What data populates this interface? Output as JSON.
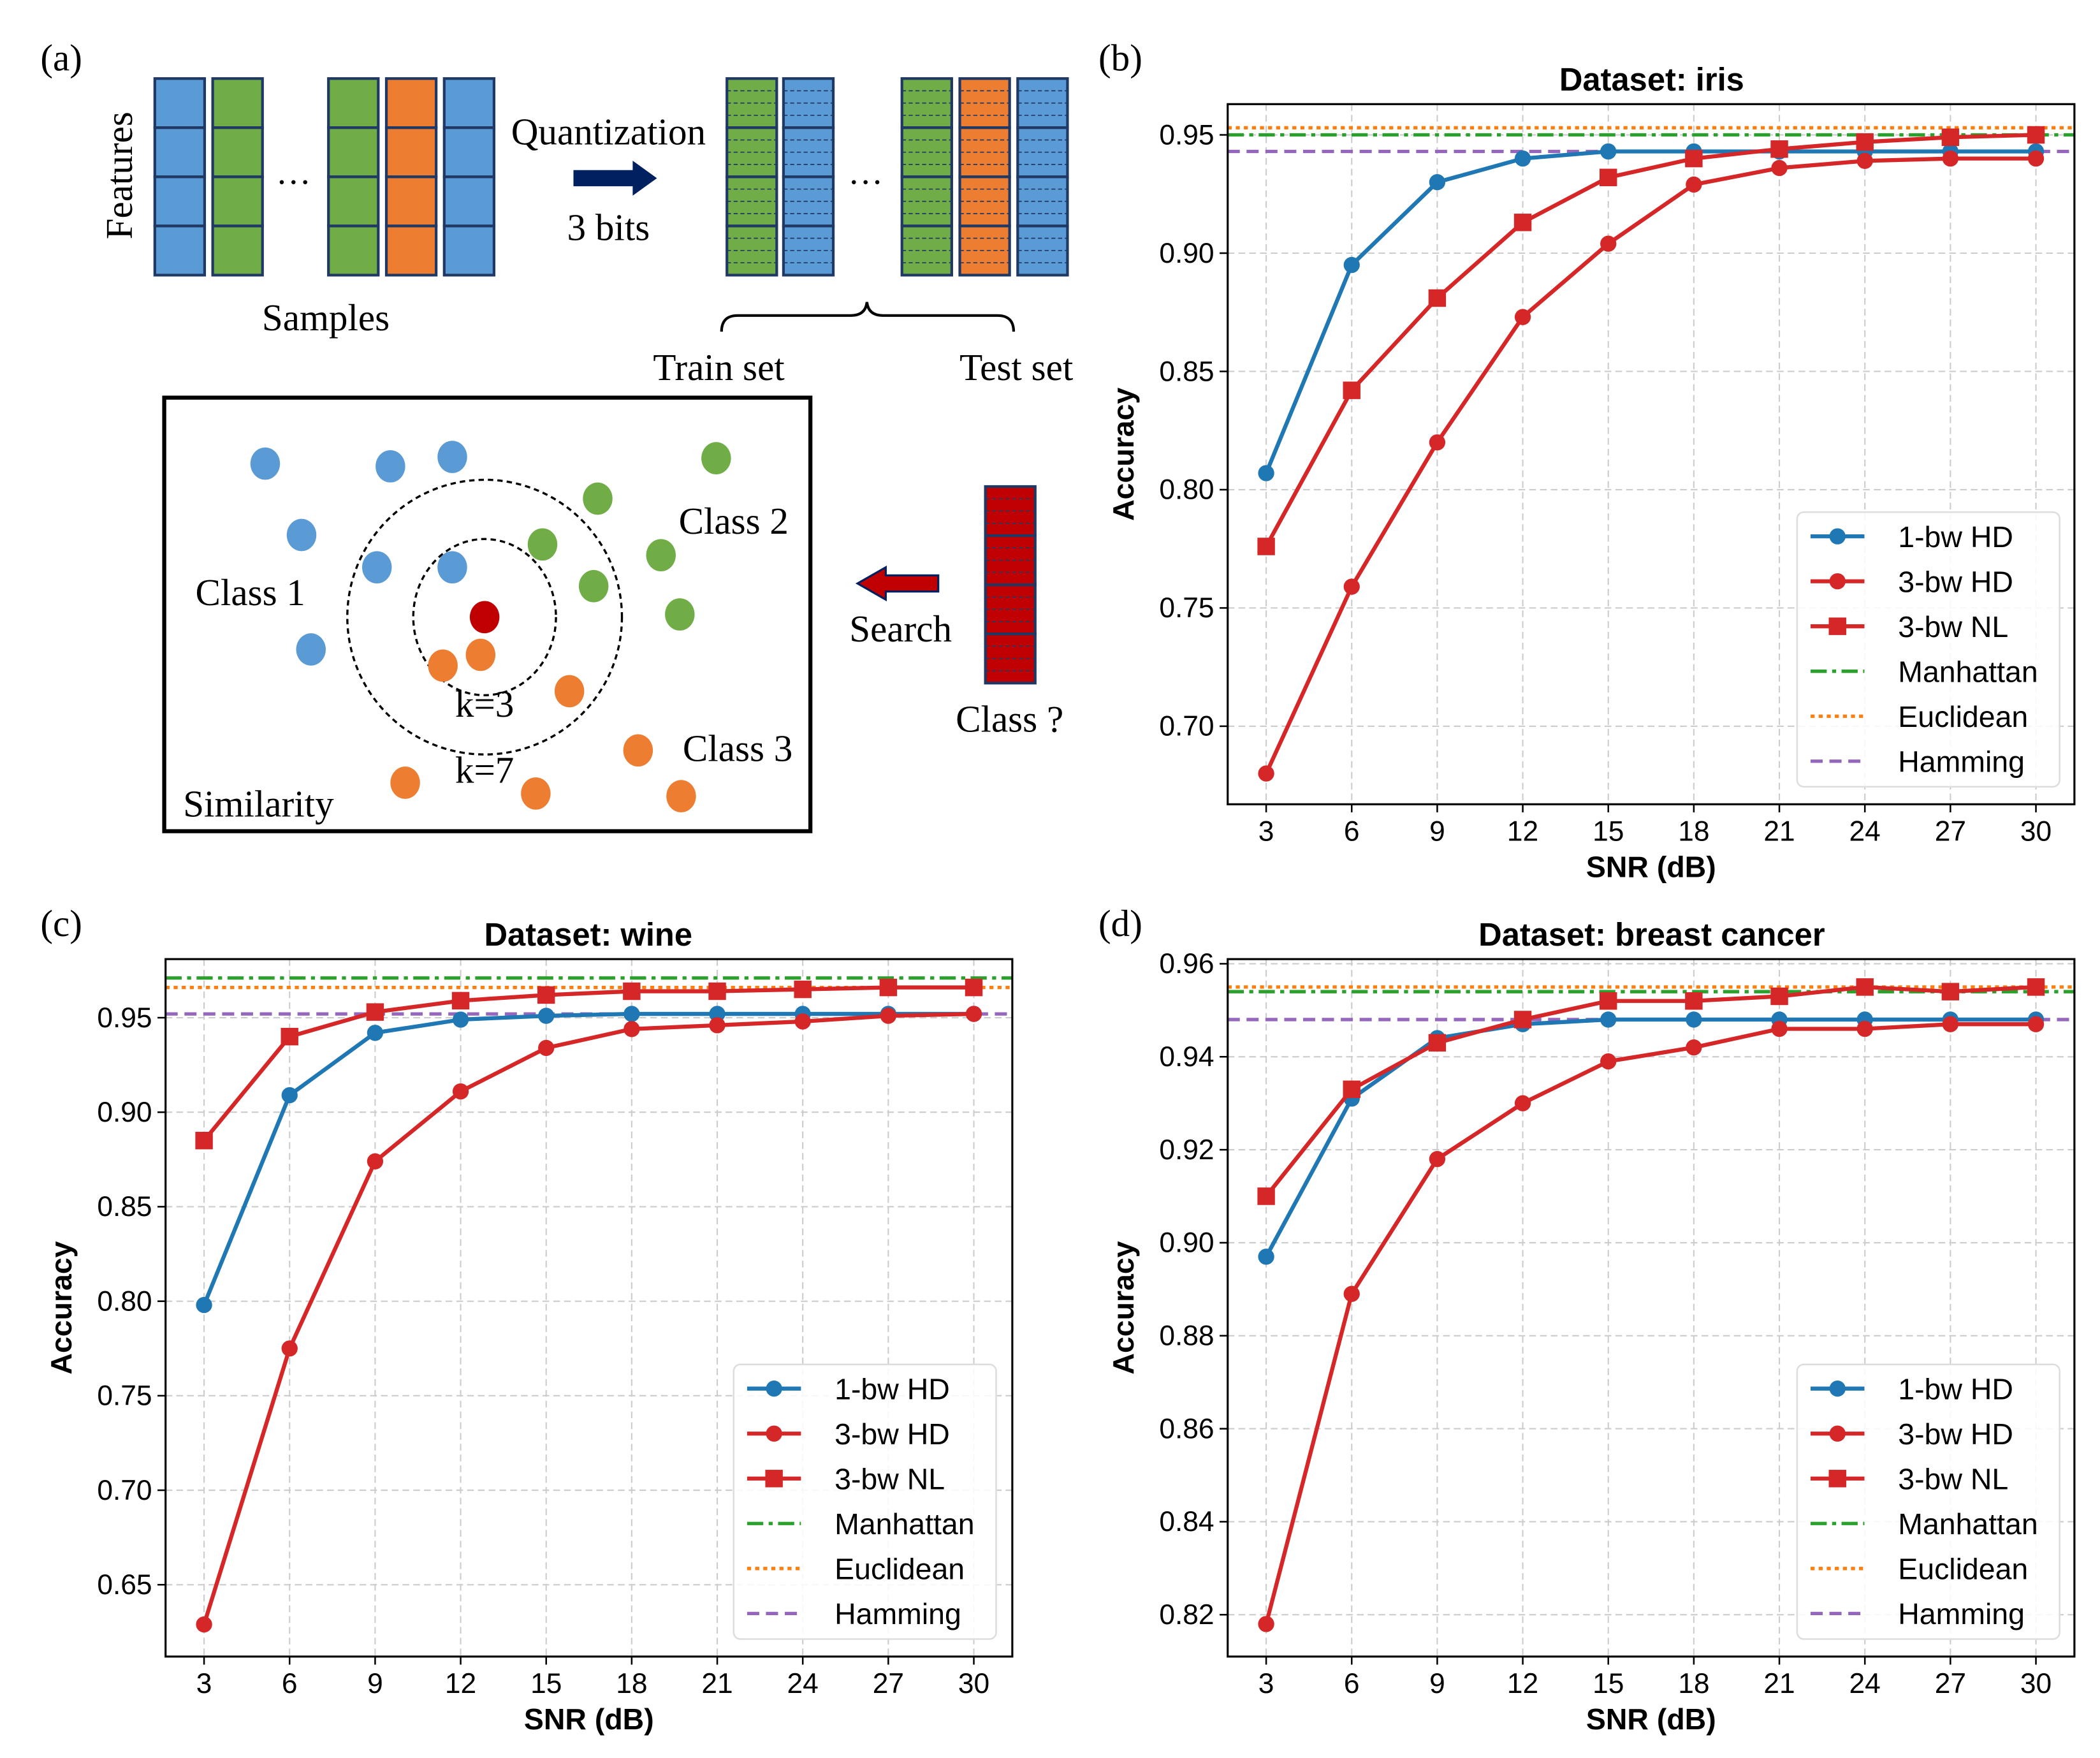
{
  "panel_labels": {
    "a": "(a)",
    "b": "(b)",
    "c": "(c)",
    "d": "(d)"
  },
  "diagram": {
    "features_label": "Features",
    "samples_label": "Samples",
    "ellipsis": "…",
    "quantization_label": "Quantization",
    "bits_label": "3 bits",
    "train_set_label": "Train set",
    "test_set_label": "Test set",
    "class1_label": "Class 1",
    "class2_label": "Class 2",
    "class3_label": "Class 3",
    "k3_label": "k=3",
    "k7_label": "k=7",
    "similarity_label": "Similarity",
    "search_label": "Search",
    "query_label": "Class ?",
    "colors": {
      "class1": "#5b9bd5",
      "class2": "#70ad47",
      "class3": "#ed7d31",
      "query": "#c00000",
      "arrow": "#002060"
    }
  },
  "chart_data": [
    {
      "type": "line",
      "title": "Dataset: iris",
      "xlabel": "SNR (dB)",
      "ylabel": "Accuracy",
      "x": [
        3,
        6,
        9,
        12,
        15,
        18,
        21,
        24,
        27,
        30
      ],
      "xlim": [
        1.65,
        31.35
      ],
      "ylim": [
        0.667,
        0.963
      ],
      "yticks": [
        0.7,
        0.75,
        0.8,
        0.85,
        0.9,
        0.95
      ],
      "ytick_labels": [
        "0.70",
        "0.75",
        "0.80",
        "0.85",
        "0.90",
        "0.95"
      ],
      "grid": true,
      "legend": "lower-right",
      "series": [
        {
          "name": "1-bw HD",
          "color": "#1f77b4",
          "marker": "circle",
          "values": [
            0.807,
            0.895,
            0.93,
            0.94,
            0.943,
            0.943,
            0.943,
            0.943,
            0.943,
            0.943
          ]
        },
        {
          "name": "3-bw HD",
          "color": "#d62728",
          "marker": "circle",
          "values": [
            0.68,
            0.759,
            0.82,
            0.873,
            0.904,
            0.929,
            0.936,
            0.939,
            0.94,
            0.94
          ]
        },
        {
          "name": "3-bw NL",
          "color": "#d62728",
          "marker": "square",
          "values": [
            0.776,
            0.842,
            0.881,
            0.913,
            0.932,
            0.94,
            0.944,
            0.947,
            0.949,
            0.95
          ]
        }
      ],
      "reference_lines": [
        {
          "name": "Manhattan",
          "color": "#2ca02c",
          "style": "dashdot",
          "value": 0.95
        },
        {
          "name": "Euclidean",
          "color": "#ff7f0e",
          "style": "dotted",
          "value": 0.953
        },
        {
          "name": "Hamming",
          "color": "#9467bd",
          "style": "dashed",
          "value": 0.943
        }
      ]
    },
    {
      "type": "line",
      "title": "Dataset: wine",
      "xlabel": "SNR (dB)",
      "ylabel": "Accuracy",
      "x": [
        3,
        6,
        9,
        12,
        15,
        18,
        21,
        24,
        27,
        30
      ],
      "xlim": [
        1.65,
        31.35
      ],
      "ylim": [
        0.612,
        0.981
      ],
      "yticks": [
        0.65,
        0.7,
        0.75,
        0.8,
        0.85,
        0.9,
        0.95
      ],
      "ytick_labels": [
        "0.65",
        "0.70",
        "0.75",
        "0.80",
        "0.85",
        "0.90",
        "0.95"
      ],
      "grid": true,
      "legend": "lower-right",
      "series": [
        {
          "name": "1-bw HD",
          "color": "#1f77b4",
          "marker": "circle",
          "values": [
            0.798,
            0.909,
            0.942,
            0.949,
            0.951,
            0.952,
            0.952,
            0.952,
            0.952,
            0.952
          ]
        },
        {
          "name": "3-bw HD",
          "color": "#d62728",
          "marker": "circle",
          "values": [
            0.629,
            0.775,
            0.874,
            0.911,
            0.934,
            0.944,
            0.946,
            0.948,
            0.951,
            0.952
          ]
        },
        {
          "name": "3-bw NL",
          "color": "#d62728",
          "marker": "square",
          "values": [
            0.885,
            0.94,
            0.953,
            0.959,
            0.962,
            0.964,
            0.964,
            0.965,
            0.966,
            0.966
          ]
        }
      ],
      "reference_lines": [
        {
          "name": "Manhattan",
          "color": "#2ca02c",
          "style": "dashdot",
          "value": 0.971
        },
        {
          "name": "Euclidean",
          "color": "#ff7f0e",
          "style": "dotted",
          "value": 0.966
        },
        {
          "name": "Hamming",
          "color": "#9467bd",
          "style": "dashed",
          "value": 0.952
        }
      ]
    },
    {
      "type": "line",
      "title": "Dataset: breast cancer",
      "xlabel": "SNR (dB)",
      "ylabel": "Accuracy",
      "x": [
        3,
        6,
        9,
        12,
        15,
        18,
        21,
        24,
        27,
        30
      ],
      "xlim": [
        1.65,
        31.35
      ],
      "ylim": [
        0.811,
        0.961
      ],
      "yticks": [
        0.82,
        0.84,
        0.86,
        0.88,
        0.9,
        0.92,
        0.94,
        0.96
      ],
      "ytick_labels": [
        "0.82",
        "0.84",
        "0.86",
        "0.88",
        "0.90",
        "0.92",
        "0.94",
        "0.96"
      ],
      "grid": true,
      "legend": "lower-right",
      "series": [
        {
          "name": "1-bw HD",
          "color": "#1f77b4",
          "marker": "circle",
          "values": [
            0.897,
            0.931,
            0.944,
            0.947,
            0.948,
            0.948,
            0.948,
            0.948,
            0.948,
            0.948
          ]
        },
        {
          "name": "3-bw HD",
          "color": "#d62728",
          "marker": "circle",
          "values": [
            0.818,
            0.889,
            0.918,
            0.93,
            0.939,
            0.942,
            0.946,
            0.946,
            0.947,
            0.947
          ]
        },
        {
          "name": "3-bw NL",
          "color": "#d62728",
          "marker": "square",
          "values": [
            0.91,
            0.933,
            0.943,
            0.948,
            0.952,
            0.952,
            0.953,
            0.955,
            0.954,
            0.955
          ]
        }
      ],
      "reference_lines": [
        {
          "name": "Manhattan",
          "color": "#2ca02c",
          "style": "dashdot",
          "value": 0.954
        },
        {
          "name": "Euclidean",
          "color": "#ff7f0e",
          "style": "dotted",
          "value": 0.955
        },
        {
          "name": "Hamming",
          "color": "#9467bd",
          "style": "dashed",
          "value": 0.948
        }
      ]
    }
  ]
}
